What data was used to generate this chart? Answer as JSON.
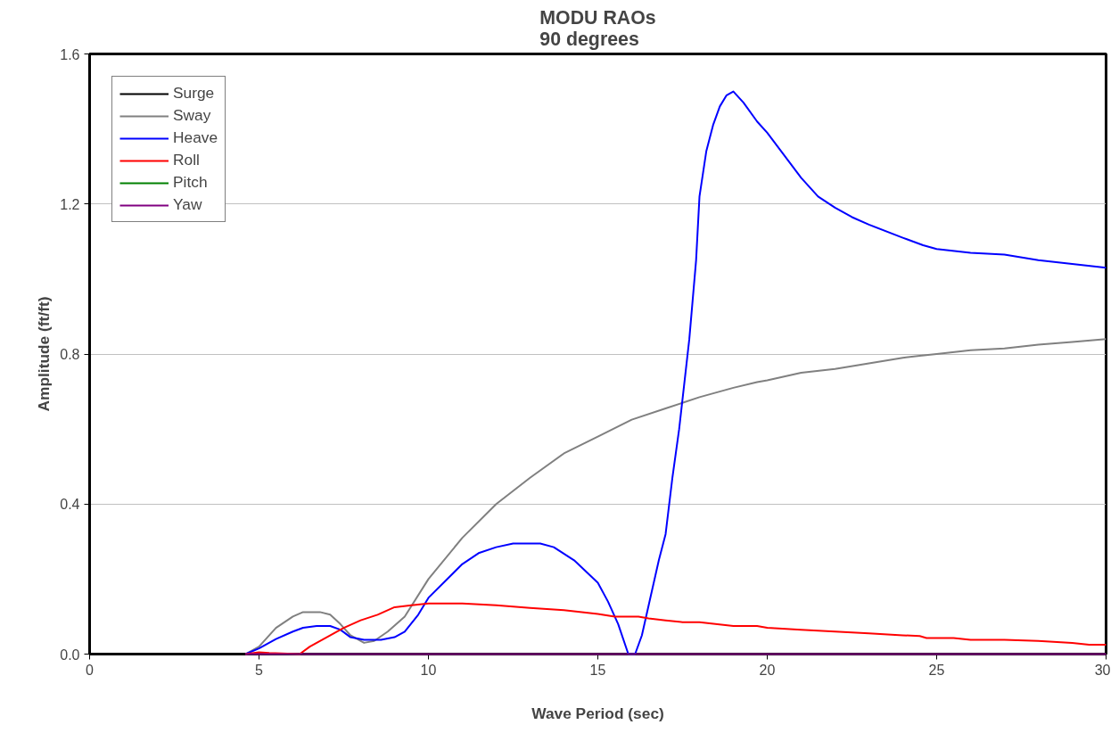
{
  "chart_data": {
    "type": "line",
    "title": "MODU RAOs\n90 degrees",
    "xlabel": "Wave Period (sec)",
    "ylabel": "Amplitude (ft/ft)",
    "xlim": [
      0,
      30
    ],
    "ylim": [
      0,
      1.6
    ],
    "xticks": [
      0,
      5,
      10,
      15,
      20,
      25,
      30
    ],
    "yticks": [
      {
        "value": 0,
        "label": "0.0"
      },
      {
        "value": 0.4,
        "label": "0.4"
      },
      {
        "value": 0.8,
        "label": "0.8"
      },
      {
        "value": 1.2,
        "label": "1.2"
      },
      {
        "value": 1.6,
        "label": "1.6"
      }
    ],
    "grid": "y",
    "legend": "top left",
    "marker": "none",
    "line_style": "solid",
    "series": [
      {
        "name": "Surge",
        "color": "#000000"
      },
      {
        "name": "Sway",
        "color": "#808080",
        "x": [
          4.6,
          5,
          5.5,
          6,
          6.3,
          6.8,
          7.1,
          7.4,
          7.7,
          8.1,
          8.4,
          8.8,
          9.3,
          10,
          11,
          12,
          13,
          14,
          15,
          16,
          17,
          18,
          19,
          19.7,
          20,
          21,
          22,
          23,
          24,
          24.5,
          25,
          26,
          27,
          28,
          29,
          30
        ],
        "values": [
          0,
          0.02,
          0.07,
          0.1,
          0.112,
          0.112,
          0.105,
          0.08,
          0.05,
          0.03,
          0.035,
          0.06,
          0.1,
          0.2,
          0.31,
          0.4,
          0.47,
          0.535,
          0.58,
          0.625,
          0.655,
          0.685,
          0.71,
          0.725,
          0.73,
          0.75,
          0.76,
          0.775,
          0.79,
          0.795,
          0.8,
          0.81,
          0.815,
          0.825,
          0.832,
          0.84
        ]
      },
      {
        "name": "Heave",
        "color": "#0000ff",
        "x": [
          4.6,
          5,
          5.5,
          6,
          6.3,
          6.7,
          7.1,
          7.4,
          7.7,
          8.1,
          8.6,
          9,
          9.3,
          9.7,
          10,
          11,
          11.5,
          12,
          12.5,
          13.3,
          13.7,
          14.3,
          15,
          15.3,
          15.6,
          15.9,
          16.1,
          16.3,
          16.5,
          16.8,
          17,
          17.2,
          17.4,
          17.7,
          17.9,
          18,
          18.2,
          18.4,
          18.6,
          18.8,
          19,
          19.3,
          19.7,
          20,
          20.5,
          21,
          21.5,
          22,
          22.5,
          23,
          24,
          24.6,
          25,
          26,
          27,
          28,
          29,
          30
        ],
        "values": [
          0,
          0.015,
          0.04,
          0.06,
          0.07,
          0.075,
          0.075,
          0.065,
          0.045,
          0.038,
          0.038,
          0.045,
          0.06,
          0.105,
          0.15,
          0.24,
          0.27,
          0.285,
          0.295,
          0.295,
          0.285,
          0.25,
          0.19,
          0.14,
          0.08,
          0,
          0,
          0.05,
          0.13,
          0.25,
          0.32,
          0.47,
          0.6,
          0.84,
          1.05,
          1.22,
          1.34,
          1.41,
          1.46,
          1.49,
          1.5,
          1.47,
          1.42,
          1.39,
          1.33,
          1.27,
          1.22,
          1.19,
          1.165,
          1.145,
          1.11,
          1.09,
          1.08,
          1.07,
          1.065,
          1.05,
          1.04,
          1.03
        ]
      },
      {
        "name": "Roll",
        "color": "#ff0000",
        "x": [
          4.6,
          5,
          5.3,
          6.2,
          6.5,
          7,
          7.5,
          8,
          8.5,
          9,
          9.5,
          10,
          11,
          12,
          13,
          14,
          15,
          15.5,
          16.2,
          16.5,
          17,
          17.5,
          18,
          19,
          19.7,
          20,
          21,
          22,
          23,
          24,
          24.5,
          24.7,
          25.5,
          26,
          27,
          28,
          29,
          29.5,
          30
        ],
        "values": [
          0,
          0.005,
          0.003,
          0,
          0.02,
          0.045,
          0.07,
          0.09,
          0.105,
          0.125,
          0.13,
          0.135,
          0.135,
          0.13,
          0.123,
          0.117,
          0.107,
          0.1,
          0.1,
          0.095,
          0.09,
          0.085,
          0.085,
          0.075,
          0.075,
          0.07,
          0.065,
          0.06,
          0.055,
          0.05,
          0.048,
          0.043,
          0.043,
          0.038,
          0.038,
          0.035,
          0.03,
          0.025,
          0.025
        ]
      },
      {
        "name": "Pitch",
        "color": "#008000"
      },
      {
        "name": "Yaw",
        "color": "#800080",
        "x": [
          4.6,
          30
        ],
        "values": [
          0,
          0
        ]
      }
    ]
  }
}
